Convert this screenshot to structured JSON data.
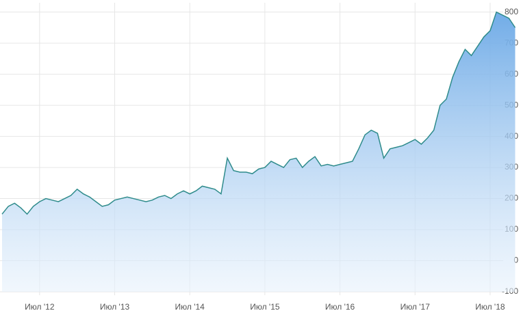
{
  "chart_data": {
    "type": "area",
    "x": [
      "2012-01",
      "2012-02",
      "2012-03",
      "2012-04",
      "2012-05",
      "2012-06",
      "2012-07",
      "2012-08",
      "2012-09",
      "2012-10",
      "2012-11",
      "2012-12",
      "2013-01",
      "2013-02",
      "2013-03",
      "2013-04",
      "2013-05",
      "2013-06",
      "2013-07",
      "2013-08",
      "2013-09",
      "2013-10",
      "2013-11",
      "2013-12",
      "2014-01",
      "2014-02",
      "2014-03",
      "2014-04",
      "2014-05",
      "2014-06",
      "2014-07",
      "2014-08",
      "2014-09",
      "2014-10",
      "2014-11",
      "2014-12",
      "2015-01",
      "2015-02",
      "2015-03",
      "2015-04",
      "2015-05",
      "2015-06",
      "2015-07",
      "2015-08",
      "2015-09",
      "2015-10",
      "2015-11",
      "2015-12",
      "2016-01",
      "2016-02",
      "2016-03",
      "2016-04",
      "2016-05",
      "2016-06",
      "2016-07",
      "2016-08",
      "2016-09",
      "2016-10",
      "2016-11",
      "2016-12",
      "2017-01",
      "2017-02",
      "2017-03",
      "2017-04",
      "2017-05",
      "2017-06",
      "2017-07",
      "2017-08",
      "2017-09",
      "2017-10",
      "2017-11",
      "2017-12",
      "2018-01",
      "2018-02",
      "2018-03",
      "2018-04",
      "2018-05",
      "2018-06",
      "2018-07",
      "2018-08",
      "2018-09",
      "2018-10",
      "2018-11"
    ],
    "series": [
      {
        "color": "#2e8b8b",
        "values": [
          150,
          175,
          185,
          170,
          150,
          175,
          190,
          200,
          195,
          190,
          200,
          210,
          230,
          215,
          205,
          190,
          175,
          180,
          195,
          200,
          205,
          200,
          195,
          190,
          195,
          205,
          210,
          200,
          215,
          225,
          215,
          225,
          240,
          235,
          230,
          215,
          330,
          290,
          285,
          285,
          280,
          295,
          300,
          320,
          310,
          300,
          325,
          330,
          300,
          320,
          335,
          305,
          310,
          305,
          310,
          315,
          320,
          360,
          405,
          420,
          410,
          330,
          360,
          365,
          370,
          380,
          390,
          375,
          395,
          420,
          500,
          520,
          590,
          640,
          680,
          660,
          690,
          720,
          740,
          800,
          790,
          780,
          750
        ]
      }
    ],
    "ylim": [
      -100,
      830
    ],
    "yticks": [
      -100,
      0,
      100,
      200,
      300,
      400,
      500,
      600,
      700,
      800
    ],
    "xticks": [
      {
        "value": "2012-07",
        "label": "Июл '12"
      },
      {
        "value": "2013-07",
        "label": "Июл '13"
      },
      {
        "value": "2014-07",
        "label": "Июл '14"
      },
      {
        "value": "2015-07",
        "label": "Июл '15"
      },
      {
        "value": "2016-07",
        "label": "Июл '16"
      },
      {
        "value": "2017-07",
        "label": "Июл '17"
      },
      {
        "value": "2018-07",
        "label": "Июл '18"
      }
    ],
    "grid": true
  }
}
